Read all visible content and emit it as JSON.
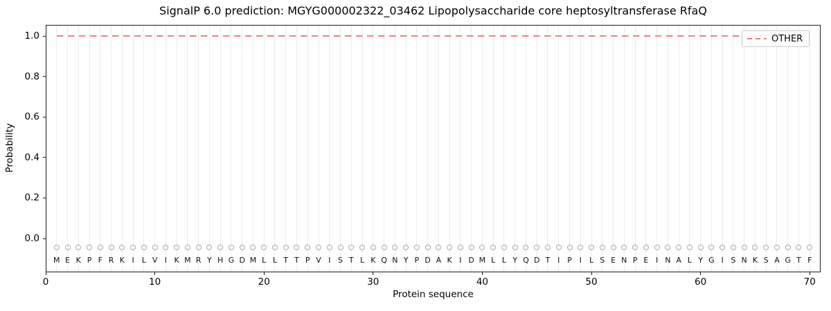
{
  "chart_data": {
    "type": "line",
    "title": "SignalP 6.0 prediction: MGYG000002322_03462 Lipopolysaccharide core heptosyltransferase RfaQ",
    "xlabel": "Protein sequence",
    "ylabel": "Probability",
    "xlim": [
      0,
      71
    ],
    "ylim": [
      -0.167,
      1.055
    ],
    "x_ticks": [
      0,
      10,
      20,
      30,
      40,
      50,
      60,
      70
    ],
    "y_ticks": [
      0.0,
      0.2,
      0.4,
      0.6,
      0.8,
      1.0
    ],
    "grid": {
      "show": true,
      "orientation": "vertical",
      "per_residue": true,
      "color": "#ececec"
    },
    "legend": {
      "position": "upper right",
      "entries": [
        {
          "label": "OTHER",
          "style": "dashed",
          "color": "#f08080"
        }
      ]
    },
    "series": [
      {
        "name": "OTHER",
        "style": "dashed",
        "color": "#f08080",
        "x": [
          1,
          70
        ],
        "y": [
          1.0,
          1.0
        ]
      }
    ],
    "sequence": "MEKPFRKILVIKMRYHGDMLLTTPVISTLKQNYPDAKIDMLLYQDTIPILSENPEINALYGISNKSAGTF",
    "sequence_length": 70,
    "residue_marker": {
      "shape": "open-circle",
      "color": "#a9a9a9",
      "y": -0.045
    },
    "residue_letter_y": -0.108,
    "colors": {
      "spine": "#1a1a1a",
      "grid": "#ececec",
      "marker": "#a9a9a9",
      "other_line": "#f08080"
    }
  }
}
